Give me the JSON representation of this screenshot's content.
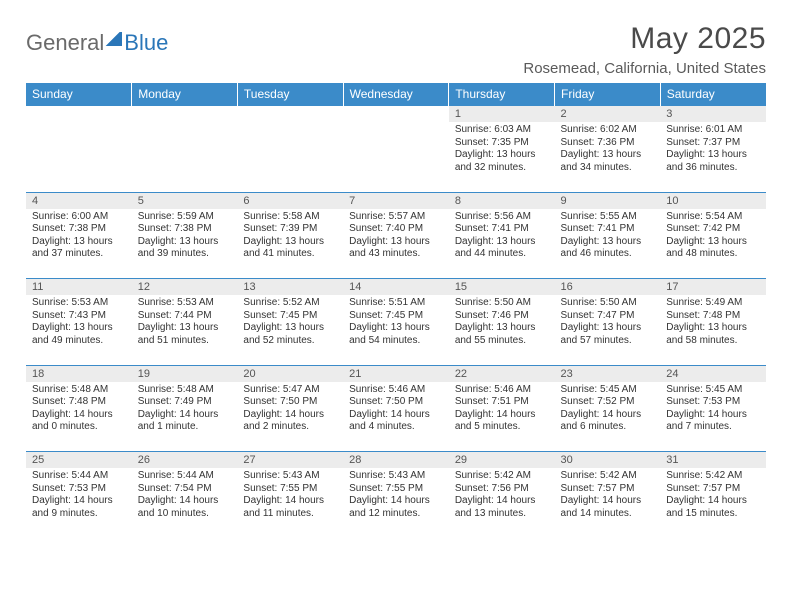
{
  "logo": {
    "general": "General",
    "blue": "Blue"
  },
  "title": "May 2025",
  "location": "Rosemead, California, United States",
  "header_bg": "#3b8bc9",
  "daynum_bg": "#ececec",
  "days": [
    "Sunday",
    "Monday",
    "Tuesday",
    "Wednesday",
    "Thursday",
    "Friday",
    "Saturday"
  ],
  "weeks": [
    [
      null,
      null,
      null,
      null,
      {
        "n": "1",
        "sr": "Sunrise: 6:03 AM",
        "ss": "Sunset: 7:35 PM",
        "dl1": "Daylight: 13 hours",
        "dl2": "and 32 minutes."
      },
      {
        "n": "2",
        "sr": "Sunrise: 6:02 AM",
        "ss": "Sunset: 7:36 PM",
        "dl1": "Daylight: 13 hours",
        "dl2": "and 34 minutes."
      },
      {
        "n": "3",
        "sr": "Sunrise: 6:01 AM",
        "ss": "Sunset: 7:37 PM",
        "dl1": "Daylight: 13 hours",
        "dl2": "and 36 minutes."
      }
    ],
    [
      {
        "n": "4",
        "sr": "Sunrise: 6:00 AM",
        "ss": "Sunset: 7:38 PM",
        "dl1": "Daylight: 13 hours",
        "dl2": "and 37 minutes."
      },
      {
        "n": "5",
        "sr": "Sunrise: 5:59 AM",
        "ss": "Sunset: 7:38 PM",
        "dl1": "Daylight: 13 hours",
        "dl2": "and 39 minutes."
      },
      {
        "n": "6",
        "sr": "Sunrise: 5:58 AM",
        "ss": "Sunset: 7:39 PM",
        "dl1": "Daylight: 13 hours",
        "dl2": "and 41 minutes."
      },
      {
        "n": "7",
        "sr": "Sunrise: 5:57 AM",
        "ss": "Sunset: 7:40 PM",
        "dl1": "Daylight: 13 hours",
        "dl2": "and 43 minutes."
      },
      {
        "n": "8",
        "sr": "Sunrise: 5:56 AM",
        "ss": "Sunset: 7:41 PM",
        "dl1": "Daylight: 13 hours",
        "dl2": "and 44 minutes."
      },
      {
        "n": "9",
        "sr": "Sunrise: 5:55 AM",
        "ss": "Sunset: 7:41 PM",
        "dl1": "Daylight: 13 hours",
        "dl2": "and 46 minutes."
      },
      {
        "n": "10",
        "sr": "Sunrise: 5:54 AM",
        "ss": "Sunset: 7:42 PM",
        "dl1": "Daylight: 13 hours",
        "dl2": "and 48 minutes."
      }
    ],
    [
      {
        "n": "11",
        "sr": "Sunrise: 5:53 AM",
        "ss": "Sunset: 7:43 PM",
        "dl1": "Daylight: 13 hours",
        "dl2": "and 49 minutes."
      },
      {
        "n": "12",
        "sr": "Sunrise: 5:53 AM",
        "ss": "Sunset: 7:44 PM",
        "dl1": "Daylight: 13 hours",
        "dl2": "and 51 minutes."
      },
      {
        "n": "13",
        "sr": "Sunrise: 5:52 AM",
        "ss": "Sunset: 7:45 PM",
        "dl1": "Daylight: 13 hours",
        "dl2": "and 52 minutes."
      },
      {
        "n": "14",
        "sr": "Sunrise: 5:51 AM",
        "ss": "Sunset: 7:45 PM",
        "dl1": "Daylight: 13 hours",
        "dl2": "and 54 minutes."
      },
      {
        "n": "15",
        "sr": "Sunrise: 5:50 AM",
        "ss": "Sunset: 7:46 PM",
        "dl1": "Daylight: 13 hours",
        "dl2": "and 55 minutes."
      },
      {
        "n": "16",
        "sr": "Sunrise: 5:50 AM",
        "ss": "Sunset: 7:47 PM",
        "dl1": "Daylight: 13 hours",
        "dl2": "and 57 minutes."
      },
      {
        "n": "17",
        "sr": "Sunrise: 5:49 AM",
        "ss": "Sunset: 7:48 PM",
        "dl1": "Daylight: 13 hours",
        "dl2": "and 58 minutes."
      }
    ],
    [
      {
        "n": "18",
        "sr": "Sunrise: 5:48 AM",
        "ss": "Sunset: 7:48 PM",
        "dl1": "Daylight: 14 hours",
        "dl2": "and 0 minutes."
      },
      {
        "n": "19",
        "sr": "Sunrise: 5:48 AM",
        "ss": "Sunset: 7:49 PM",
        "dl1": "Daylight: 14 hours",
        "dl2": "and 1 minute."
      },
      {
        "n": "20",
        "sr": "Sunrise: 5:47 AM",
        "ss": "Sunset: 7:50 PM",
        "dl1": "Daylight: 14 hours",
        "dl2": "and 2 minutes."
      },
      {
        "n": "21",
        "sr": "Sunrise: 5:46 AM",
        "ss": "Sunset: 7:50 PM",
        "dl1": "Daylight: 14 hours",
        "dl2": "and 4 minutes."
      },
      {
        "n": "22",
        "sr": "Sunrise: 5:46 AM",
        "ss": "Sunset: 7:51 PM",
        "dl1": "Daylight: 14 hours",
        "dl2": "and 5 minutes."
      },
      {
        "n": "23",
        "sr": "Sunrise: 5:45 AM",
        "ss": "Sunset: 7:52 PM",
        "dl1": "Daylight: 14 hours",
        "dl2": "and 6 minutes."
      },
      {
        "n": "24",
        "sr": "Sunrise: 5:45 AM",
        "ss": "Sunset: 7:53 PM",
        "dl1": "Daylight: 14 hours",
        "dl2": "and 7 minutes."
      }
    ],
    [
      {
        "n": "25",
        "sr": "Sunrise: 5:44 AM",
        "ss": "Sunset: 7:53 PM",
        "dl1": "Daylight: 14 hours",
        "dl2": "and 9 minutes."
      },
      {
        "n": "26",
        "sr": "Sunrise: 5:44 AM",
        "ss": "Sunset: 7:54 PM",
        "dl1": "Daylight: 14 hours",
        "dl2": "and 10 minutes."
      },
      {
        "n": "27",
        "sr": "Sunrise: 5:43 AM",
        "ss": "Sunset: 7:55 PM",
        "dl1": "Daylight: 14 hours",
        "dl2": "and 11 minutes."
      },
      {
        "n": "28",
        "sr": "Sunrise: 5:43 AM",
        "ss": "Sunset: 7:55 PM",
        "dl1": "Daylight: 14 hours",
        "dl2": "and 12 minutes."
      },
      {
        "n": "29",
        "sr": "Sunrise: 5:42 AM",
        "ss": "Sunset: 7:56 PM",
        "dl1": "Daylight: 14 hours",
        "dl2": "and 13 minutes."
      },
      {
        "n": "30",
        "sr": "Sunrise: 5:42 AM",
        "ss": "Sunset: 7:57 PM",
        "dl1": "Daylight: 14 hours",
        "dl2": "and 14 minutes."
      },
      {
        "n": "31",
        "sr": "Sunrise: 5:42 AM",
        "ss": "Sunset: 7:57 PM",
        "dl1": "Daylight: 14 hours",
        "dl2": "and 15 minutes."
      }
    ]
  ]
}
